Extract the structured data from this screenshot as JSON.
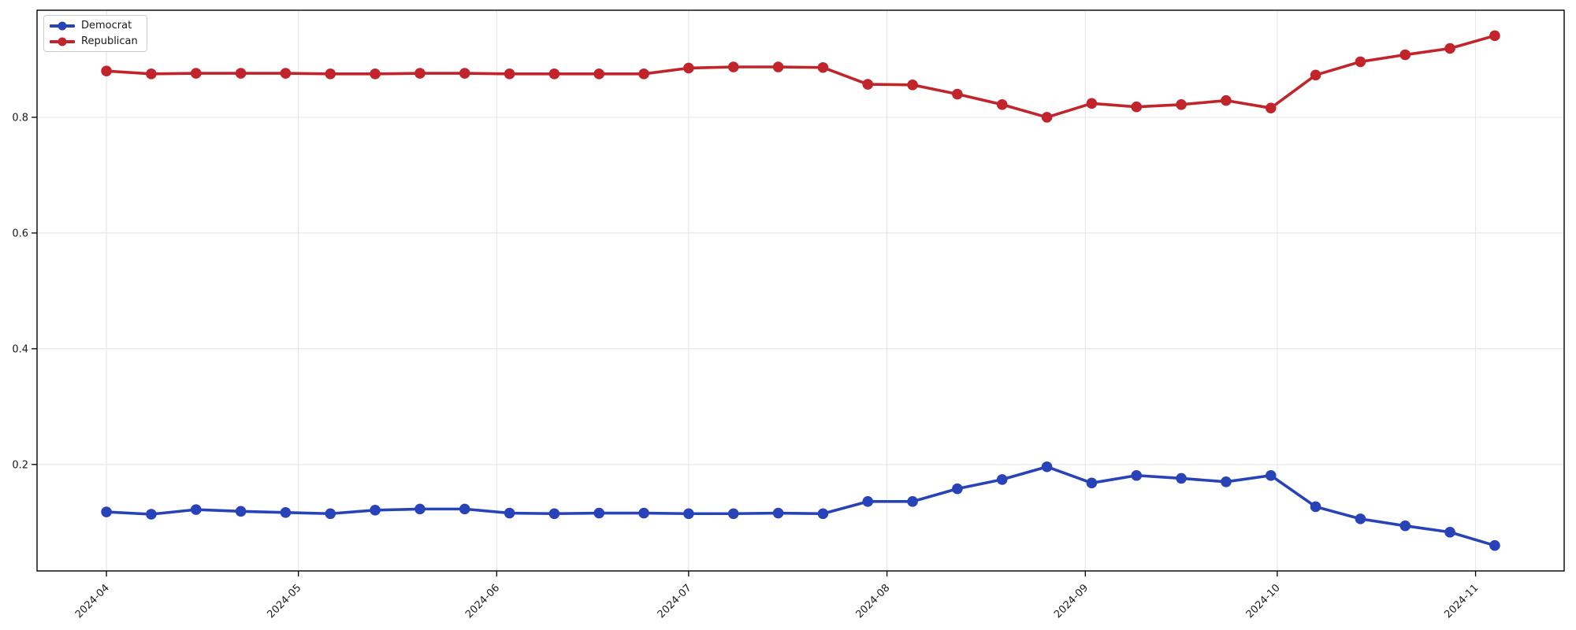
{
  "figure": {
    "background": "#ffffff",
    "plot_border_color": "#000000",
    "grid_color": "#e7e7e7",
    "tick_color": "#1a1a1a"
  },
  "legend": {
    "items": [
      {
        "label": "Democrat",
        "color": "#2843b8"
      },
      {
        "label": "Republican",
        "color": "#c1242b"
      }
    ]
  },
  "chart_data": {
    "type": "line",
    "title": "",
    "xlabel": "",
    "ylabel": "",
    "grid": true,
    "legend_position": "upper left",
    "marker": "o",
    "x": [
      "2024-04-01",
      "2024-04-08",
      "2024-04-15",
      "2024-04-22",
      "2024-04-29",
      "2024-05-06",
      "2024-05-13",
      "2024-05-20",
      "2024-05-27",
      "2024-06-03",
      "2024-06-10",
      "2024-06-17",
      "2024-06-24",
      "2024-07-01",
      "2024-07-08",
      "2024-07-15",
      "2024-07-22",
      "2024-07-29",
      "2024-08-05",
      "2024-08-12",
      "2024-08-19",
      "2024-08-26",
      "2024-09-02",
      "2024-09-09",
      "2024-09-16",
      "2024-09-23",
      "2024-09-30",
      "2024-10-07",
      "2024-10-14",
      "2024-10-21",
      "2024-10-28",
      "2024-11-04"
    ],
    "series": [
      {
        "name": "Democrat",
        "color": "#2843b8",
        "values": [
          0.118,
          0.114,
          0.122,
          0.119,
          0.117,
          0.115,
          0.121,
          0.123,
          0.123,
          0.116,
          0.115,
          0.116,
          0.116,
          0.115,
          0.115,
          0.116,
          0.115,
          0.136,
          0.136,
          0.158,
          0.174,
          0.196,
          0.168,
          0.181,
          0.176,
          0.17,
          0.181,
          0.127,
          0.106,
          0.094,
          0.083,
          0.06
        ]
      },
      {
        "name": "Republican",
        "color": "#c1242b",
        "values": [
          0.88,
          0.875,
          0.876,
          0.876,
          0.876,
          0.875,
          0.875,
          0.876,
          0.876,
          0.875,
          0.875,
          0.875,
          0.875,
          0.885,
          0.887,
          0.887,
          0.886,
          0.857,
          0.856,
          0.84,
          0.822,
          0.8,
          0.824,
          0.818,
          0.822,
          0.829,
          0.816,
          0.873,
          0.896,
          0.908,
          0.919,
          0.941
        ]
      }
    ],
    "x_tick_labels": [
      "2024-04",
      "2024-05",
      "2024-06",
      "2024-07",
      "2024-08",
      "2024-09",
      "2024-10",
      "2024-11"
    ],
    "y_ticks": [
      0.2,
      0.4,
      0.6,
      0.8
    ],
    "y_tick_labels": [
      "0.2",
      "0.4",
      "0.6",
      "0.8"
    ],
    "ylim": [
      0.016,
      0.985
    ]
  }
}
